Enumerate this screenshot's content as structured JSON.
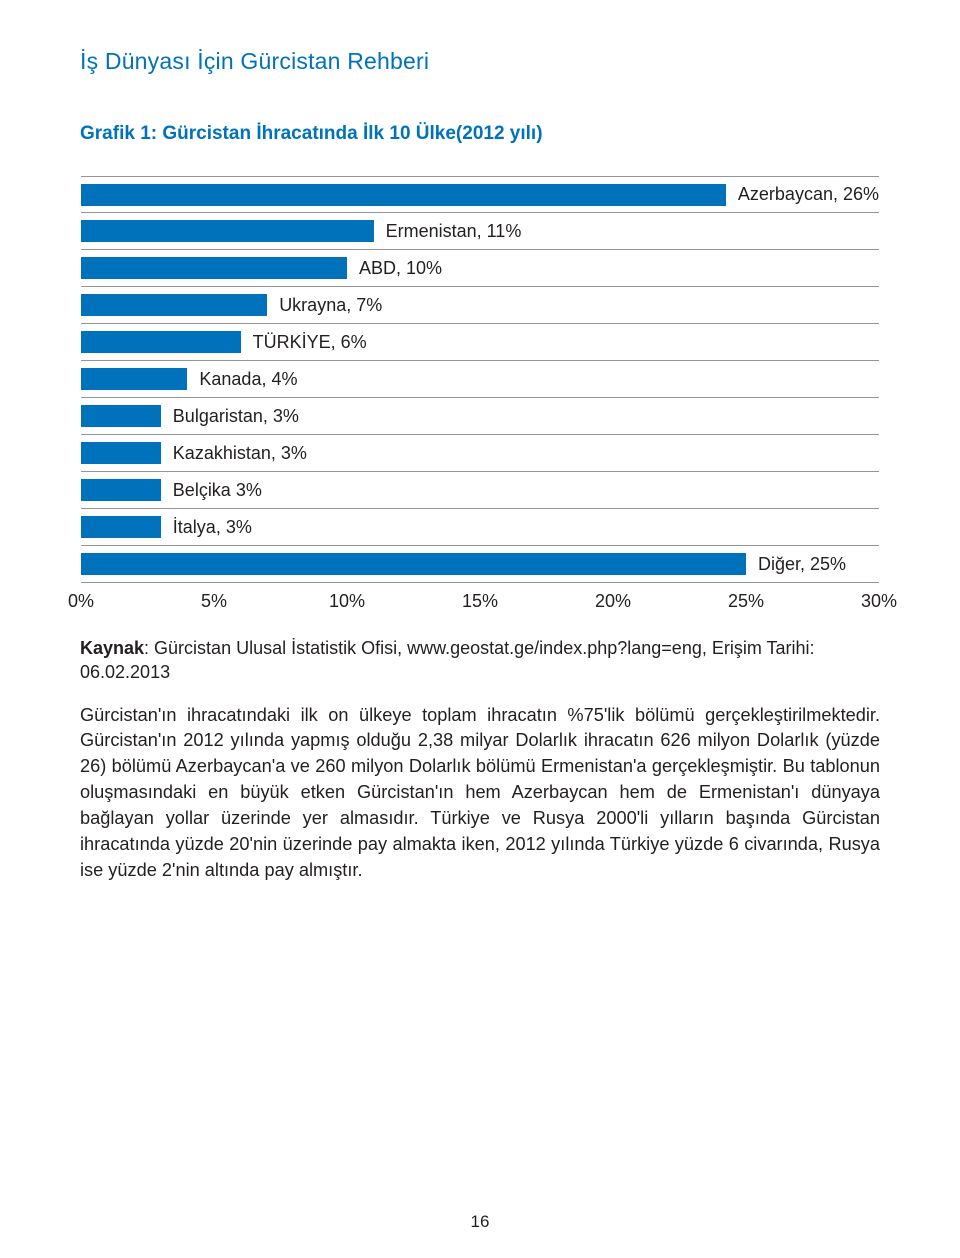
{
  "running_head": "İş Dünyası İçin Gürcistan Rehberi",
  "running_head_color": "#0072bc",
  "running_head_fontsize": 23,
  "chart": {
    "type": "bar",
    "title": "Grafik 1: Gürcistan İhracatında İlk 10 Ülke(2012 yılı)",
    "title_fontsize": 19,
    "title_color": "#0072bc",
    "bar_color": "#0072bc",
    "grid_color": "#939598",
    "label_color": "#231f20",
    "label_fontsize": 18,
    "xtick_fontsize": 18,
    "x_max": 30,
    "x_ticks": [
      "0%",
      "5%",
      "10%",
      "15%",
      "20%",
      "25%",
      "30%"
    ],
    "x_tick_vals": [
      0,
      5,
      10,
      15,
      20,
      25,
      30
    ],
    "rows": [
      {
        "label": "Azerbaycan, 26%",
        "value": 26
      },
      {
        "label": "Ermenistan, 11%",
        "value": 11
      },
      {
        "label": "ABD, 10%",
        "value": 10
      },
      {
        "label": "Ukrayna, 7%",
        "value": 7
      },
      {
        "label": "TÜRKİYE, 6%",
        "value": 6
      },
      {
        "label": "Kanada, 4%",
        "value": 4
      },
      {
        "label": "Bulgaristan, 3%",
        "value": 3
      },
      {
        "label": "Kazakhistan, 3%",
        "value": 3
      },
      {
        "label": "Belçika 3%",
        "value": 3
      },
      {
        "label": "İtalya, 3%",
        "value": 3
      },
      {
        "label": "Diğer, 25%",
        "value": 25
      }
    ]
  },
  "source_label": "Kaynak",
  "source_text": ": Gürcistan Ulusal İstatistik Ofisi, www.geostat.ge/index.php?lang=eng, Erişim Tarihi: 06.02.2013",
  "body": "Gürcistan'ın ihracatındaki ilk on ülkeye toplam ihracatın %75'lik bölümü gerçekleştirilmektedir. Gürcistan'ın 2012 yılında yapmış olduğu 2,38 milyar Dolarlık ihracatın 626 milyon Dolarlık (yüzde 26) bölümü Azerbaycan'a ve 260 milyon Dolarlık bölümü Ermenistan'a gerçekleşmiştir. Bu tablonun oluşmasındaki en büyük etken Gürcistan'ın hem Azerbaycan hem de Ermenistan'ı dünyaya bağlayan yollar üzerinde yer almasıdır. Türkiye ve Rusya 2000'li yılların başında Gürcistan ihracatında yüzde 20'nin üzerinde pay almakta iken, 2012 yılında Türkiye yüzde 6 civarında, Rusya ise yüzde 2'nin altında pay almıştır.",
  "page_number": "16"
}
